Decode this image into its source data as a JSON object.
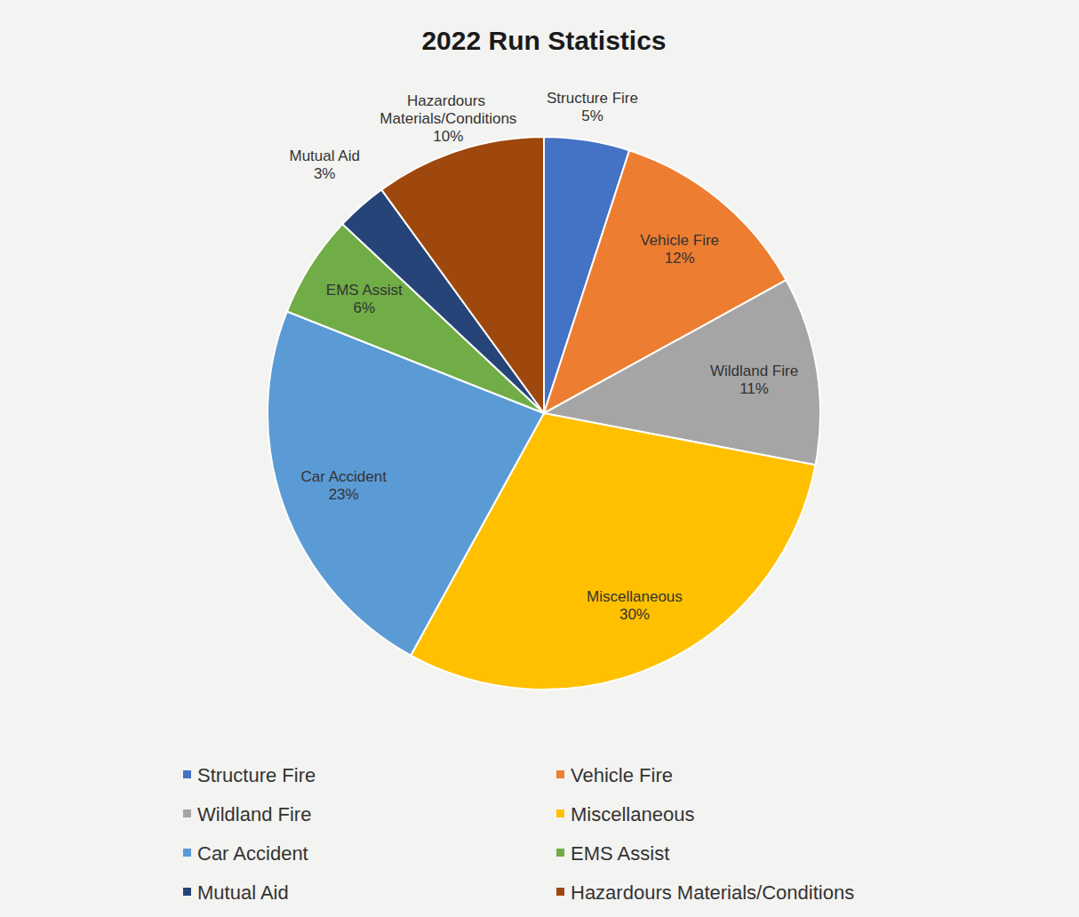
{
  "chart_data": {
    "type": "pie",
    "title": "2022 Run Statistics",
    "categories": [
      "Structure Fire",
      "Vehicle Fire",
      "Wildland Fire",
      "Miscellaneous",
      "Car Accident",
      "EMS Assist",
      "Mutual Aid",
      "Hazardours Materials/Conditions"
    ],
    "values": [
      5,
      12,
      11,
      30,
      23,
      6,
      3,
      10
    ],
    "value_labels": [
      "5%",
      "12%",
      "11%",
      "30%",
      "23%",
      "6%",
      "3%",
      "10%"
    ],
    "colors": [
      "#4472c4",
      "#ed7d31",
      "#a5a5a5",
      "#ffc000",
      "#5b9bd5",
      "#70ad47",
      "#264478",
      "#9e480e"
    ],
    "data_labels": true,
    "legend": "bottom"
  }
}
